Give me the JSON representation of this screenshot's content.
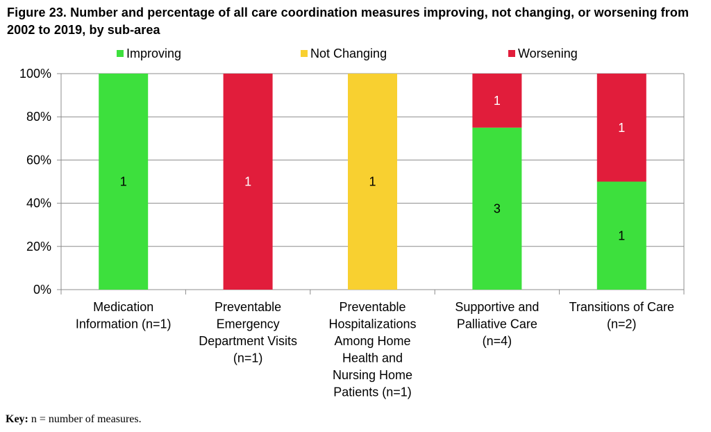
{
  "title": "Figure 23. Number and percentage of all care coordination measures improving, not changing, or worsening from 2002 to 2019, by sub-area",
  "key": {
    "label": "Key:",
    "text": "n = number of measures."
  },
  "colors": {
    "improving": "#3de03d",
    "not_changing": "#f8d030",
    "worsening": "#e11d3b"
  },
  "chart_data": {
    "type": "bar",
    "stacked": true,
    "percent": true,
    "categories": [
      [
        "Medication",
        "Information (n=1)"
      ],
      [
        "Preventable",
        "Emergency",
        "Department Visits",
        "(n=1)"
      ],
      [
        "Preventable",
        "Hospitalizations",
        "Among Home",
        "Health and",
        "Nursing Home",
        "Patients (n=1)"
      ],
      [
        "Supportive and",
        "Palliative Care",
        "(n=4)"
      ],
      [
        "Transitions of Care",
        "(n=2)"
      ]
    ],
    "series": [
      {
        "name": "Improving",
        "color": "#3de03d",
        "values": [
          1,
          0,
          0,
          3,
          1
        ]
      },
      {
        "name": "Not Changing",
        "color": "#f8d030",
        "values": [
          0,
          0,
          1,
          0,
          0
        ]
      },
      {
        "name": "Worsening",
        "color": "#e11d3b",
        "values": [
          0,
          1,
          0,
          1,
          1
        ]
      }
    ],
    "yticks": [
      "0%",
      "20%",
      "40%",
      "60%",
      "80%",
      "100%"
    ],
    "ylim": [
      0,
      100
    ],
    "legend_position": "top",
    "grid": true
  }
}
